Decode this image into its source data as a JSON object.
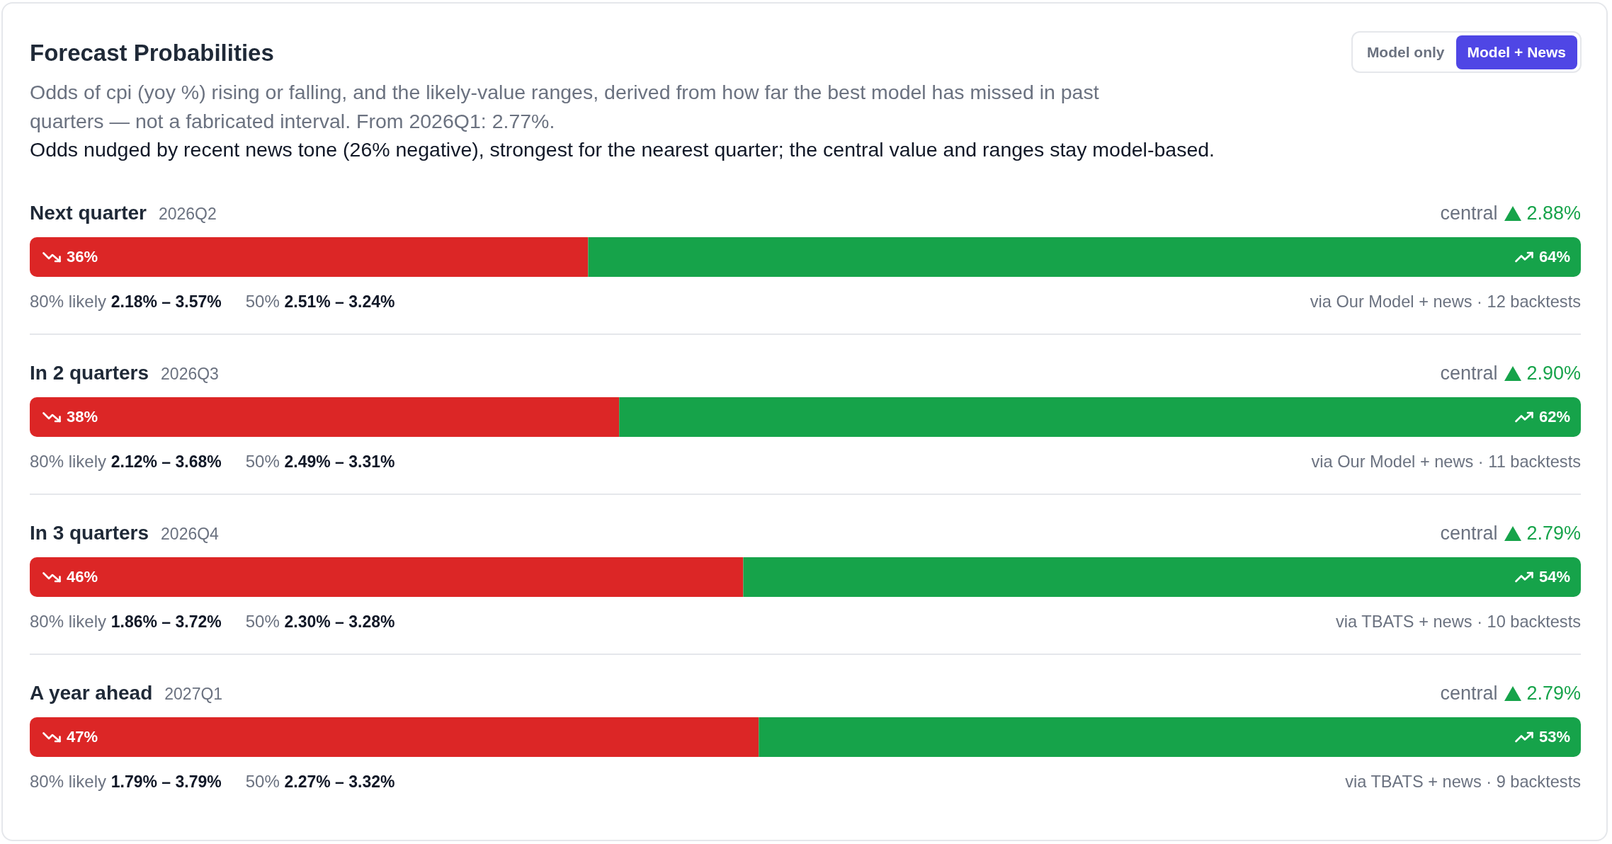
{
  "chart_data": [
    {
      "type": "other",
      "title": "Forecast Probabilities",
      "subtitle": "Odds of cpi (yoy %) rising or falling, and the likely-value ranges, derived from how far the best model has missed in past quarters — not a fabricated interval. From 2026Q1: 2.77%.",
      "annotations": [
        "Odds nudged by recent news tone (26% negative), strongest for the nearest quarter; the central value and ranges stay model-based.",
        "Model only",
        "Model + News"
      ]
    },
    {
      "type": "bar",
      "orientation": "horizontal",
      "stacked": true,
      "title": "Next quarter",
      "subtitle": "2026Q2",
      "categories": [
        null
      ],
      "xlim": [
        0,
        100
      ],
      "tick_labels": false,
      "series": [
        {
          "color": "#dc2626",
          "values": [
            36
          ],
          "value_labels": [
            "36%"
          ]
        },
        {
          "color": "#16a34a",
          "values": [
            64
          ],
          "value_labels": [
            "64%"
          ]
        }
      ],
      "annotations": [
        "central",
        "2.88%",
        "80% likely",
        "2.18% – 3.57%",
        "50%",
        "2.51% – 3.24%",
        "via Our Model + news · 12 backtests"
      ]
    },
    {
      "type": "bar",
      "orientation": "horizontal",
      "stacked": true,
      "title": "In 2 quarters",
      "subtitle": "2026Q3",
      "categories": [
        null
      ],
      "xlim": [
        0,
        100
      ],
      "tick_labels": false,
      "series": [
        {
          "color": "#dc2626",
          "values": [
            38
          ],
          "value_labels": [
            "38%"
          ]
        },
        {
          "color": "#16a34a",
          "values": [
            62
          ],
          "value_labels": [
            "62%"
          ]
        }
      ],
      "annotations": [
        "central",
        "2.90%",
        "80% likely",
        "2.12% – 3.68%",
        "50%",
        "2.49% – 3.31%",
        "via Our Model + news · 11 backtests"
      ]
    },
    {
      "type": "bar",
      "orientation": "horizontal",
      "stacked": true,
      "title": "In 3 quarters",
      "subtitle": "2026Q4",
      "categories": [
        null
      ],
      "xlim": [
        0,
        100
      ],
      "tick_labels": false,
      "series": [
        {
          "color": "#dc2626",
          "values": [
            46
          ],
          "value_labels": [
            "46%"
          ]
        },
        {
          "color": "#16a34a",
          "values": [
            54
          ],
          "value_labels": [
            "54%"
          ]
        }
      ],
      "annotations": [
        "central",
        "2.79%",
        "80% likely",
        "1.86% – 3.72%",
        "50%",
        "2.30% – 3.28%",
        "via TBATS + news · 10 backtests"
      ]
    },
    {
      "type": "bar",
      "orientation": "horizontal",
      "stacked": true,
      "title": "A year ahead",
      "subtitle": "2027Q1",
      "categories": [
        null
      ],
      "xlim": [
        0,
        100
      ],
      "tick_labels": false,
      "series": [
        {
          "color": "#dc2626",
          "values": [
            47
          ],
          "value_labels": [
            "47%"
          ]
        },
        {
          "color": "#16a34a",
          "values": [
            53
          ],
          "value_labels": [
            "53%"
          ]
        }
      ],
      "annotations": [
        "central",
        "2.79%",
        "80% likely",
        "1.79% – 3.79%",
        "50%",
        "2.27% – 3.32%",
        "via TBATS + news · 9 backtests"
      ]
    }
  ]
}
